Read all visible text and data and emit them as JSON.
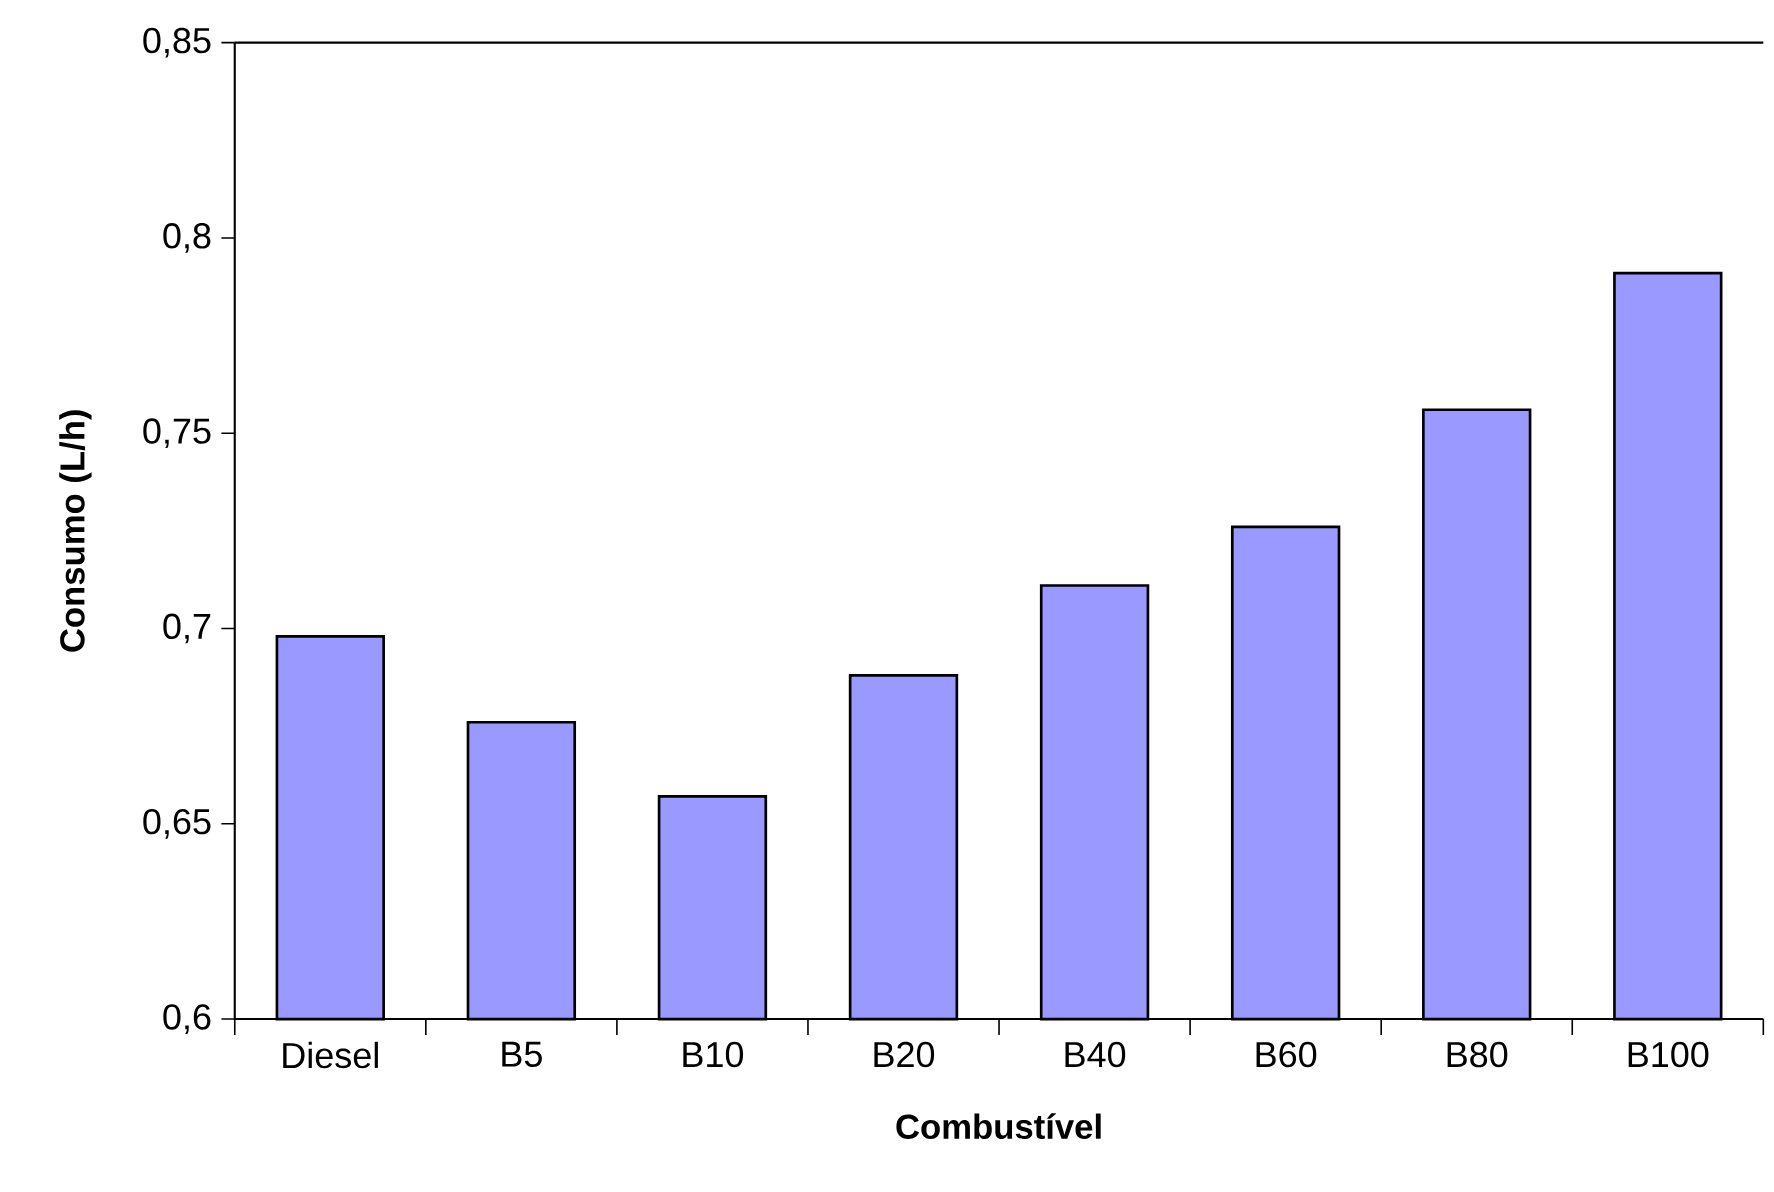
{
  "chart_data": {
    "type": "bar",
    "xlabel": "Combustível",
    "ylabel": "Consumo (L/h)",
    "categories": [
      "Diesel",
      "B5",
      "B10",
      "B20",
      "B40",
      "B60",
      "B80",
      "B100"
    ],
    "values": [
      0.698,
      0.676,
      0.657,
      0.688,
      0.711,
      0.726,
      0.756,
      0.791
    ],
    "color": "#9999ff",
    "ylim": [
      0.6,
      0.85
    ],
    "yticks": [
      {
        "value": 0.6,
        "label": "0,6"
      },
      {
        "value": 0.65,
        "label": "0,65"
      },
      {
        "value": 0.7,
        "label": "0,7"
      },
      {
        "value": 0.75,
        "label": "0,75"
      },
      {
        "value": 0.8,
        "label": "0,8"
      },
      {
        "value": 0.85,
        "label": "0,85"
      }
    ],
    "grid": false
  }
}
